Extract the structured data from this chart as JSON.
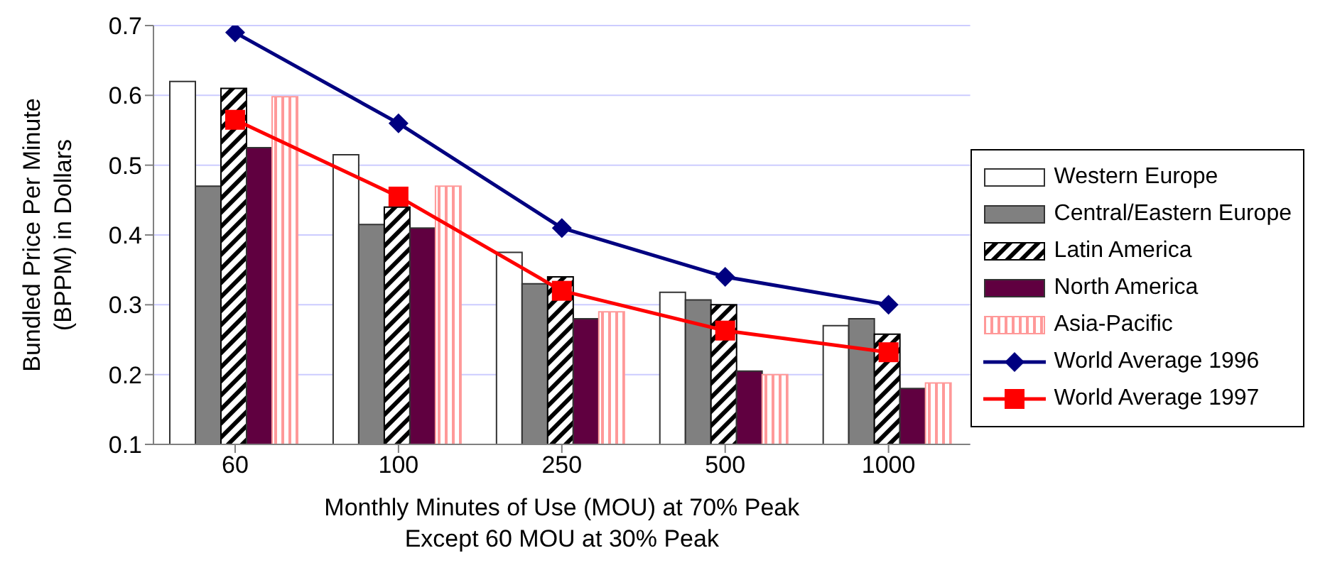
{
  "chart_data": {
    "type": "bar",
    "categories": [
      "60",
      "100",
      "250",
      "500",
      "1000"
    ],
    "xlabel": "Monthly Minutes of Use (MOU) at 70% Peak\nExcept 60 MOU at 30% Peak",
    "ylabel": "Bundled Price Per Minute\n(BPPM) in Dollars",
    "ylim": [
      0.1,
      0.7
    ],
    "yticks": [
      0.1,
      0.2,
      0.3,
      0.4,
      0.5,
      0.6,
      0.7
    ],
    "grid": "y",
    "legend": "right",
    "series": [
      {
        "name": "Western Europe",
        "color": "#ffffff",
        "values": [
          0.62,
          0.515,
          0.375,
          0.318,
          0.27
        ]
      },
      {
        "name": "Central/Eastern Europe",
        "color": "#808080",
        "values": [
          0.47,
          0.415,
          0.33,
          0.307,
          0.28
        ]
      },
      {
        "name": "Latin America",
        "color": "#000000",
        "values": [
          0.61,
          0.44,
          0.34,
          0.3,
          0.258
        ]
      },
      {
        "name": "North America",
        "color": "#600040",
        "values": [
          0.525,
          0.41,
          0.28,
          0.205,
          0.18
        ]
      },
      {
        "name": "Asia-Pacific",
        "color": "#ff9999",
        "values": [
          0.598,
          0.47,
          0.29,
          0.2,
          0.188
        ]
      },
      {
        "name": "World Average 1996",
        "type": "line",
        "marker": "diamond",
        "color": "#000080",
        "values": [
          0.69,
          0.56,
          0.41,
          0.34,
          0.3
        ]
      },
      {
        "name": "World Average 1997",
        "type": "line",
        "marker": "square",
        "color": "#ff0000",
        "values": [
          0.565,
          0.455,
          0.32,
          0.263,
          0.232
        ]
      }
    ]
  }
}
